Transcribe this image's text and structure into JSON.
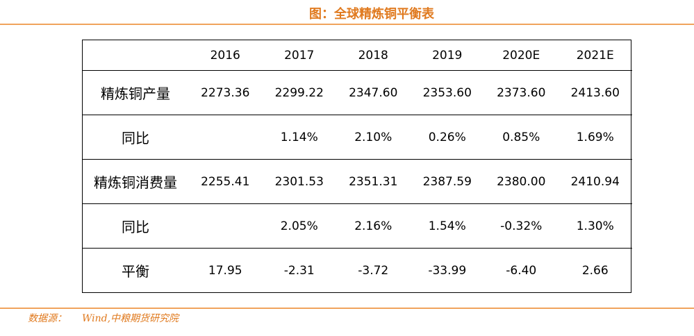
{
  "title": "图：全球精炼铜平衡表",
  "source": {
    "label": "数据源：",
    "value": "Wind,中粮期货研究院"
  },
  "table": {
    "header": [
      "",
      "2016",
      "2017",
      "2018",
      "2019",
      "2020E",
      "2021E"
    ],
    "rows": [
      {
        "label": "精炼铜产量",
        "cells": [
          "2273.36",
          "2299.22",
          "2347.60",
          "2353.60",
          "2373.60",
          "2413.60"
        ]
      },
      {
        "label": "同比",
        "cells": [
          "",
          "1.14%",
          "2.10%",
          "0.26%",
          "0.85%",
          "1.69%"
        ]
      },
      {
        "label": "精炼铜消费量",
        "cells": [
          "2255.41",
          "2301.53",
          "2351.31",
          "2387.59",
          "2380.00",
          "2410.94"
        ]
      },
      {
        "label": "同比",
        "cells": [
          "",
          "2.05%",
          "2.16%",
          "1.54%",
          "-0.32%",
          "1.30%"
        ]
      },
      {
        "label": "平衡",
        "cells": [
          "17.95",
          "-2.31",
          "-3.72",
          "-33.99",
          "-6.40",
          "2.66"
        ]
      }
    ]
  },
  "colors": {
    "accent": "#e07a1f",
    "rule": "#f0a35c"
  }
}
